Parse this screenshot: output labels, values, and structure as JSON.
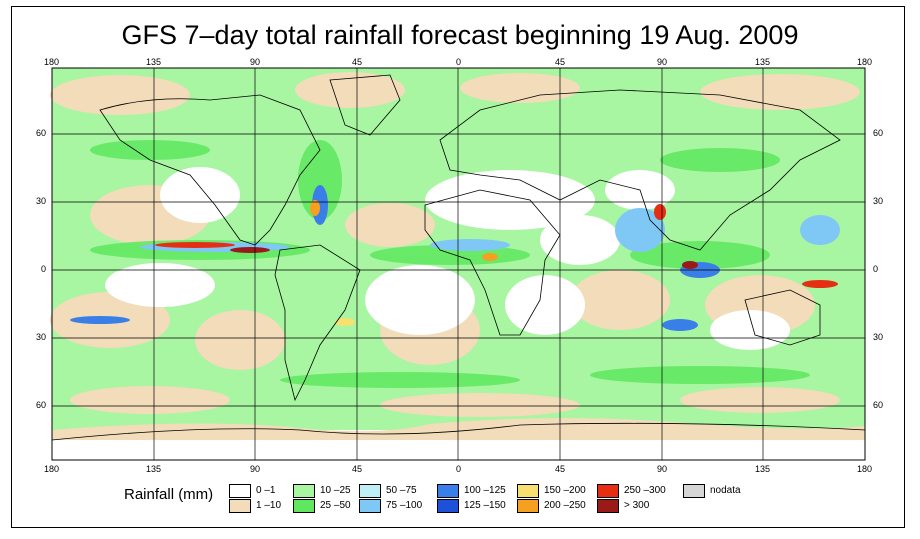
{
  "title": "GFS 7–day total rainfall forecast beginning 19 Aug. 2009",
  "lon_labels": [
    "180",
    "135",
    "90",
    "45",
    "0",
    "45",
    "90",
    "135",
    "180"
  ],
  "lat_labels": [
    "60",
    "30",
    "0",
    "30",
    "60"
  ],
  "legend": {
    "title": "Rainfall (mm)",
    "items": [
      {
        "label": "0 –1",
        "color": "#ffffff"
      },
      {
        "label": "1 –10",
        "color": "#f2dcb9"
      },
      {
        "label": "10 –25",
        "color": "#a8f5a2"
      },
      {
        "label": "25 –50",
        "color": "#5fe85f"
      },
      {
        "label": "50 –75",
        "color": "#bfeef5"
      },
      {
        "label": "75 –100",
        "color": "#7fc8f5"
      },
      {
        "label": "100 –125",
        "color": "#3a7fe8"
      },
      {
        "label": "125 –150",
        "color": "#1f50d8"
      },
      {
        "label": "150 –200",
        "color": "#f8e070"
      },
      {
        "label": "200 –250",
        "color": "#f5a020"
      },
      {
        "label": "250 –300",
        "color": "#e62e12"
      },
      {
        "label": "> 300",
        "color": "#9a1a1a"
      },
      {
        "label": "nodata",
        "color": "#d6d6d6"
      }
    ]
  }
}
